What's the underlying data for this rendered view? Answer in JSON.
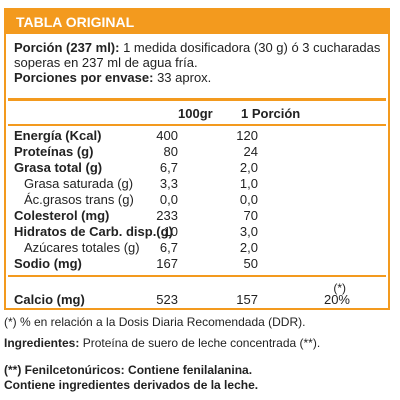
{
  "title": "TABLA ORIGINAL",
  "intro": {
    "portion_label": "Porción (237 ml):",
    "portion_text": "1 medida dosificadora (30 g) ó 3 cucharadas soperas en 237 ml de agua fría.",
    "servings_label": "Porciones por envase:",
    "servings_text": "33 aprox."
  },
  "columns": {
    "per100": "100gr",
    "perPortion": "1 Porción"
  },
  "rows": [
    {
      "label": "Energía (Kcal)",
      "v100": "400",
      "vp": "120",
      "bold": true
    },
    {
      "label": "Proteínas (g)",
      "v100": "80",
      "vp": "24",
      "bold": true
    },
    {
      "label": "Grasa total (g)",
      "v100": "6,7",
      "vp": "2,0",
      "bold": true
    },
    {
      "label": "Grasa saturada (g)",
      "v100": "3,3",
      "vp": "1,0",
      "bold": false
    },
    {
      "label": "Ác.grasos trans (g)",
      "v100": "0,0",
      "vp": "0,0",
      "bold": false
    },
    {
      "label": "Colesterol (mg)",
      "v100": "233",
      "vp": "70",
      "bold": true
    },
    {
      "label": "Hidratos de Carb. disp.(g)",
      "v100": "10",
      "vp": "3,0",
      "bold": true
    },
    {
      "label": "Azúcares totales (g)",
      "v100": "6,7",
      "vp": "2,0",
      "bold": false
    },
    {
      "label": "Sodio (mg)",
      "v100": "167",
      "vp": "50",
      "bold": true
    }
  ],
  "calcium": {
    "label": "Calcio (mg)",
    "v100": "523",
    "vp": "157",
    "mark": "(*)",
    "ddr": "20%"
  },
  "footnote": "(*) % en relación a la Dosis Diaria Recomendada (DDR).",
  "ingredients": {
    "label": "Ingredientes:",
    "text": "Proteína de suero de leche concentrada (**)."
  },
  "warning": {
    "line1_label": "(**) Fenilcetonúricos:",
    "line1_text": "Contiene fenilalanina.",
    "line2": "Contiene ingredientes derivados de la leche."
  },
  "colors": {
    "accent": "#f39a1e",
    "text": "#222222"
  }
}
